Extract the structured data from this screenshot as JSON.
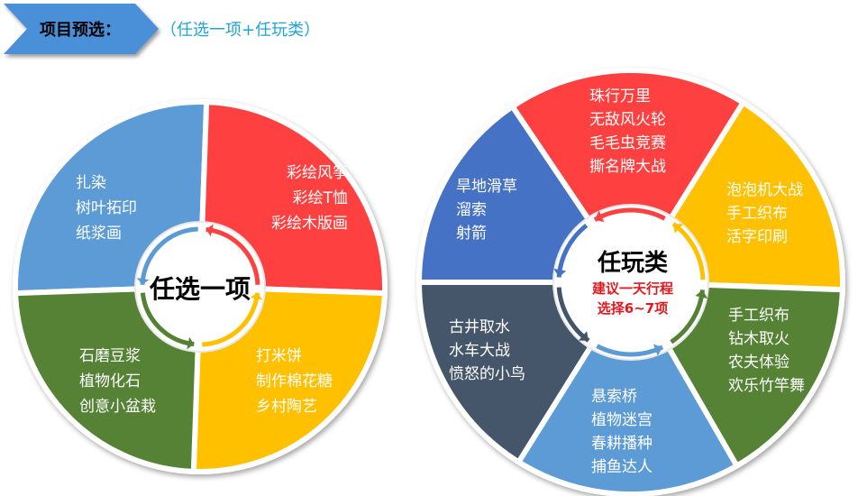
{
  "banner": {
    "title": "项目预选：",
    "subtitle": "（任选一项+任玩类）",
    "fill_color": "#4a90d9"
  },
  "left_wheel": {
    "center_title": "任选一项",
    "segments": [
      {
        "color": "#5b9bd5",
        "lines": [
          "扎染",
          "树叶拓印",
          "纸浆画"
        ]
      },
      {
        "color": "#ff4040",
        "lines": [
          "彩绘风筝",
          "彩绘T恤",
          "彩绘木版画"
        ]
      },
      {
        "color": "#ffc000",
        "lines": [
          "打米饼",
          "制作棉花糖",
          "乡村陶艺"
        ]
      },
      {
        "color": "#548235",
        "lines": [
          "石磨豆浆",
          "植物化石",
          "创意小盆栽"
        ]
      }
    ]
  },
  "right_wheel": {
    "center_title": "任玩类",
    "center_note_1": "建议一天行程",
    "center_note_2": "选择6~7项",
    "segments": [
      {
        "color": "#ff4040",
        "lines": [
          "珠行万里",
          "无敌风火轮",
          "毛毛虫竞赛",
          "撕名牌大战"
        ]
      },
      {
        "color": "#ffc000",
        "lines": [
          "泡泡机大战",
          "手工织布",
          "活字印刷"
        ]
      },
      {
        "color": "#548235",
        "lines": [
          "手工织布",
          "钻木取火",
          "农夫体验",
          "欢乐竹竿舞"
        ]
      },
      {
        "color": "#5b9bd5",
        "lines": [
          "悬索桥",
          "植物迷宫",
          "春耕播种",
          "捕鱼达人"
        ]
      },
      {
        "color": "#44546a",
        "lines": [
          "古井取水",
          "水车大战",
          "愤怒的小鸟"
        ]
      },
      {
        "color": "#4472c4",
        "lines": [
          "旱地滑草",
          "溜索",
          "射箭"
        ]
      }
    ]
  }
}
